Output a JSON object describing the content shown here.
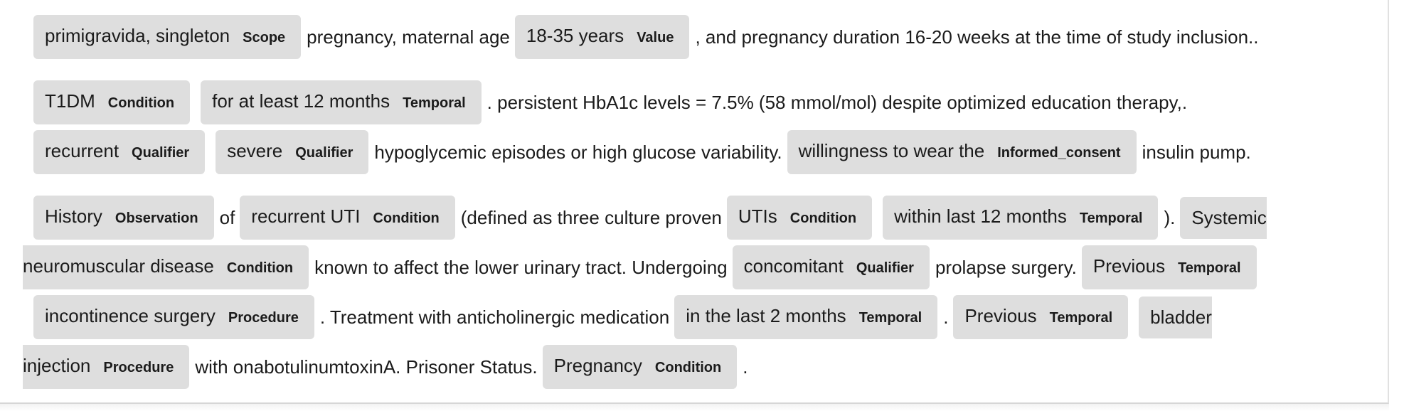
{
  "paragraphs": [
    {
      "lines": [
        [
          {
            "kind": "entity",
            "text": "primigravida, singleton",
            "label": "Scope"
          },
          {
            "kind": "text",
            "text": "pregnancy, maternal age"
          },
          {
            "kind": "entity",
            "text": "18-35 years",
            "label": "Value"
          },
          {
            "kind": "text",
            "text": ", and pregnancy duration 16-20 weeks at the time of study inclusion.."
          }
        ]
      ]
    },
    {
      "lines": [
        [
          {
            "kind": "entity",
            "text": "T1DM",
            "label": "Condition"
          },
          {
            "kind": "entity",
            "text": "for at least 12 months",
            "label": "Temporal"
          },
          {
            "kind": "text",
            "text": ". persistent HbA1c levels = 7.5% (58 mmol/mol) despite optimized education therapy,."
          }
        ],
        [
          {
            "kind": "entity",
            "text": "recurrent",
            "label": "Qualifier"
          },
          {
            "kind": "entity",
            "text": "severe",
            "label": "Qualifier"
          },
          {
            "kind": "text",
            "text": "hypoglycemic episodes or high glucose variability."
          },
          {
            "kind": "entity",
            "text": "willingness to wear the",
            "label": "Informed_consent"
          },
          {
            "kind": "text",
            "text": "insulin pump."
          }
        ]
      ]
    },
    {
      "lines": [
        [
          {
            "kind": "entity",
            "text": "History",
            "label": "Observation"
          },
          {
            "kind": "text",
            "text": "of"
          },
          {
            "kind": "entity",
            "text": "recurrent UTI",
            "label": "Condition"
          },
          {
            "kind": "text",
            "text": "(defined as three culture proven"
          },
          {
            "kind": "entity",
            "text": "UTIs",
            "label": "Condition"
          },
          {
            "kind": "entity",
            "text": "within last 12 months",
            "label": "Temporal"
          },
          {
            "kind": "text",
            "text": ")."
          },
          {
            "kind": "entity-start",
            "text": "Systemic"
          }
        ],
        [
          {
            "kind": "entity-end",
            "text": "neuromuscular disease",
            "label": "Condition"
          },
          {
            "kind": "text",
            "text": "known to affect the lower urinary tract. Undergoing"
          },
          {
            "kind": "entity",
            "text": "concomitant",
            "label": "Qualifier"
          },
          {
            "kind": "text",
            "text": "prolapse surgery."
          },
          {
            "kind": "entity",
            "text": "Previous",
            "label": "Temporal"
          }
        ],
        [
          {
            "kind": "entity",
            "text": "incontinence surgery",
            "label": "Procedure"
          },
          {
            "kind": "text",
            "text": ". Treatment with anticholinergic medication"
          },
          {
            "kind": "entity",
            "text": "in the last 2 months",
            "label": "Temporal"
          },
          {
            "kind": "text",
            "text": "."
          },
          {
            "kind": "entity",
            "text": "Previous",
            "label": "Temporal"
          },
          {
            "kind": "entity-start",
            "text": "bladder"
          }
        ],
        [
          {
            "kind": "entity-end",
            "text": "injection",
            "label": "Procedure"
          },
          {
            "kind": "text",
            "text": "with onabotulinumtoxinA. Prisoner Status."
          },
          {
            "kind": "entity",
            "text": "Pregnancy",
            "label": "Condition"
          },
          {
            "kind": "text",
            "text": "."
          }
        ]
      ]
    }
  ],
  "colors": {
    "entity_background": "#dedede",
    "text": "#1b1b1b",
    "page_background": "#ffffff"
  }
}
